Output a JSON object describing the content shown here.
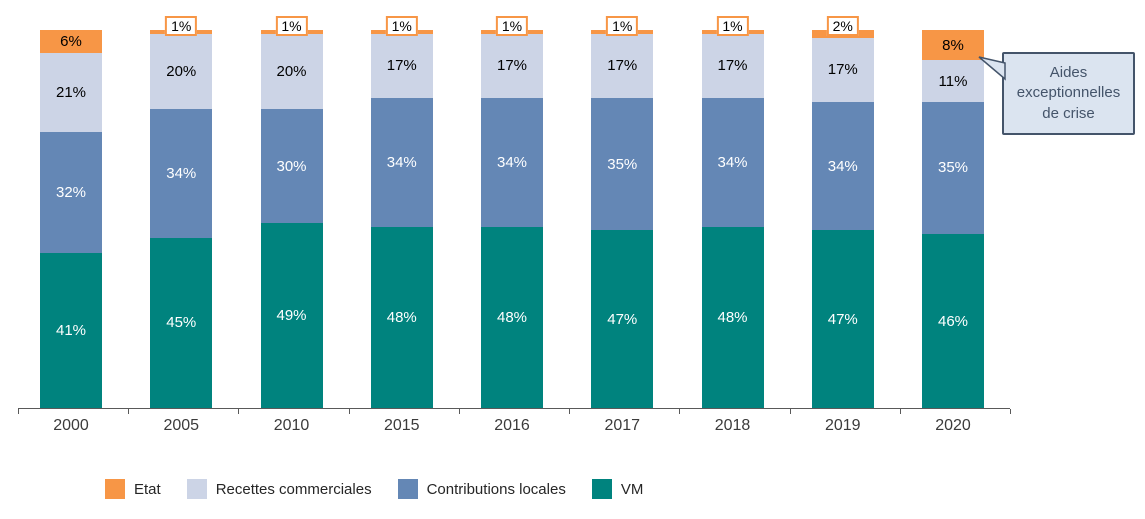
{
  "chart_data": {
    "type": "bar",
    "stacked": true,
    "unit": "%",
    "title": "",
    "xlabel": "",
    "ylabel": "",
    "ylim": [
      0,
      100
    ],
    "grid": false,
    "legend_position": "bottom",
    "categories": [
      "2000",
      "2005",
      "2010",
      "2015",
      "2016",
      "2017",
      "2018",
      "2019",
      "2020"
    ],
    "series": [
      {
        "name": "Etat",
        "color": "#F79646",
        "label_color": "#000000",
        "values": [
          6,
          1,
          1,
          1,
          1,
          1,
          1,
          2,
          8
        ]
      },
      {
        "name": "Recettes commerciales",
        "color": "#CCD4E6",
        "label_color": "#000000",
        "values": [
          21,
          20,
          20,
          17,
          17,
          17,
          17,
          17,
          11
        ]
      },
      {
        "name": "Contributions locales",
        "color": "#6487B5",
        "label_color": "#ffffff",
        "values": [
          32,
          34,
          30,
          34,
          34,
          35,
          34,
          34,
          35
        ]
      },
      {
        "name": "VM",
        "color": "#00837E",
        "label_color": "#ffffff",
        "values": [
          41,
          45,
          49,
          48,
          48,
          47,
          48,
          47,
          46
        ]
      }
    ],
    "annotation": {
      "text": "Aides exceptionnelles de crise",
      "target_category": "2020",
      "target_series": "Etat"
    }
  },
  "style": {
    "callout_fill": "#DBE4F0",
    "callout_border": "#44546A",
    "axis_color": "#595959"
  }
}
